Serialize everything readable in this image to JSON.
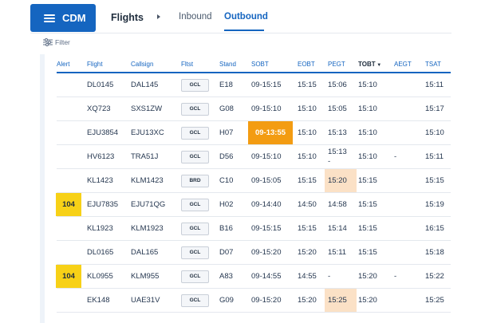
{
  "header": {
    "brand": "CDM",
    "title": "Flights",
    "tabs": [
      "Inbound",
      "Outbound"
    ],
    "active_tab": "Outbound"
  },
  "toolbar": {
    "filter_label": "Filter"
  },
  "table": {
    "columns": [
      "Alert",
      "Flight",
      "Callsign",
      "Fltst",
      "Stand",
      "SOBT",
      "EOBT",
      "PEGT",
      "TOBT",
      "AEGT",
      "TSAT"
    ],
    "sorted_column": "TOBT",
    "rows": [
      {
        "alert": "",
        "flight": "DL0145",
        "callsign": "DAL145",
        "fltst": "GCL",
        "stand": "E18",
        "sobt": "09-15:15",
        "eobt": "15:15",
        "pegt": "15:06",
        "tobt": "15:10",
        "aegt": "",
        "tsat": "15:11"
      },
      {
        "alert": "",
        "flight": "XQ723",
        "callsign": "SXS1ZW",
        "fltst": "GCL",
        "stand": "G08",
        "sobt": "09-15:10",
        "eobt": "15:10",
        "pegt": "15:05",
        "tobt": "15:10",
        "aegt": "",
        "tsat": "15:17"
      },
      {
        "alert": "",
        "flight": "EJU3854",
        "callsign": "EJU13XC",
        "fltst": "GCL",
        "stand": "H07",
        "sobt": "09-13:55",
        "eobt": "15:10",
        "pegt": "15:13",
        "tobt": "15:10",
        "aegt": "",
        "tsat": "15:10"
      },
      {
        "alert": "",
        "flight": "HV6123",
        "callsign": "TRA51J",
        "fltst": "GCL",
        "stand": "D56",
        "sobt": "09-15:10",
        "eobt": "15:10",
        "pegt": "15:13",
        "pegt_sub": "-",
        "tobt": "15:10",
        "aegt": "-",
        "tsat": "15:11"
      },
      {
        "alert": "",
        "flight": "KL1423",
        "callsign": "KLM1423",
        "fltst": "BRD",
        "stand": "C10",
        "sobt": "09-15:05",
        "eobt": "15:15",
        "pegt": "15:20",
        "tobt": "15:15",
        "aegt": "",
        "tsat": "15:15"
      },
      {
        "alert": "104",
        "flight": "EJU7835",
        "callsign": "EJU71QG",
        "fltst": "GCL",
        "stand": "H02",
        "sobt": "09-14:40",
        "eobt": "14:50",
        "pegt": "14:58",
        "tobt": "15:15",
        "aegt": "",
        "tsat": "15:19"
      },
      {
        "alert": "",
        "flight": "KL1923",
        "callsign": "KLM1923",
        "fltst": "GCL",
        "stand": "B16",
        "sobt": "09-15:15",
        "eobt": "15:15",
        "pegt": "15:14",
        "tobt": "15:15",
        "aegt": "",
        "tsat": "16:15"
      },
      {
        "alert": "",
        "flight": "DL0165",
        "callsign": "DAL165",
        "fltst": "GCL",
        "stand": "D07",
        "sobt": "09-15:20",
        "eobt": "15:20",
        "pegt": "15:11",
        "tobt": "15:15",
        "aegt": "",
        "tsat": "15:18"
      },
      {
        "alert": "104",
        "flight": "KL0955",
        "callsign": "KLM955",
        "fltst": "GCL",
        "stand": "A83",
        "sobt": "09-14:55",
        "eobt": "14:55",
        "pegt": "-",
        "tobt": "15:20",
        "aegt": "-",
        "tsat": "15:22"
      },
      {
        "alert": "",
        "flight": "EK148",
        "callsign": "UAE31V",
        "fltst": "GCL",
        "stand": "G09",
        "sobt": "09-15:20",
        "eobt": "15:20",
        "pegt": "15:25",
        "tobt": "15:20",
        "aegt": "",
        "tsat": "15:25"
      }
    ]
  },
  "highlights": [
    {
      "row": 2,
      "col": "sobt",
      "style": "orange"
    },
    {
      "row": 4,
      "col": "pegt",
      "style": "peach"
    },
    {
      "row": 9,
      "col": "pegt",
      "style": "peach"
    }
  ],
  "colors": {
    "brand": "#1565c0",
    "alert": "#f7d117",
    "orange": "#f39c12",
    "peach": "#fbe1c6",
    "accent": "#1565c0"
  }
}
